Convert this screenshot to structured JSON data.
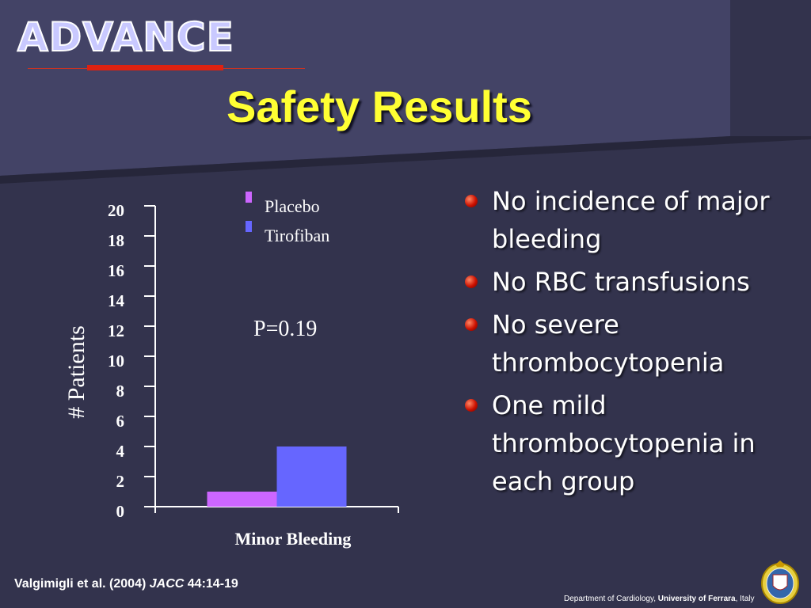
{
  "logo": {
    "text": "ADVANCE"
  },
  "slide": {
    "title": "Safety Results"
  },
  "chart_data": {
    "type": "bar",
    "categories": [
      "Minor Bleeding"
    ],
    "series": [
      {
        "name": "Placebo",
        "values": [
          1
        ],
        "color": "#cc66ff"
      },
      {
        "name": "Tirofiban",
        "values": [
          4
        ],
        "color": "#6666ff"
      }
    ],
    "ylabel": "# Patients",
    "xlabel": "",
    "ylim": [
      0,
      20
    ],
    "yticks": [
      "0",
      "2",
      "4",
      "6",
      "8",
      "10",
      "12",
      "14",
      "16",
      "18",
      "20"
    ],
    "annotation": "P=0.19",
    "legend_position": "top"
  },
  "bullets": [
    "No incidence of major bleeding",
    "No RBC transfusions",
    "No severe thrombocytopenia",
    "One mild thrombocytopenia in each group"
  ],
  "footer": {
    "citation_authors": "Valgimigli et al. (2004)",
    "citation_journal": "JACC",
    "citation_ref": "44:14-19",
    "dept_prefix": "Department of Cardiology,",
    "dept_university": "University of Ferrara",
    "dept_suffix": ", Italy"
  },
  "colors": {
    "background": "#33334d",
    "band": "#434366",
    "title": "#ffff33",
    "accent": "#dd2211"
  }
}
